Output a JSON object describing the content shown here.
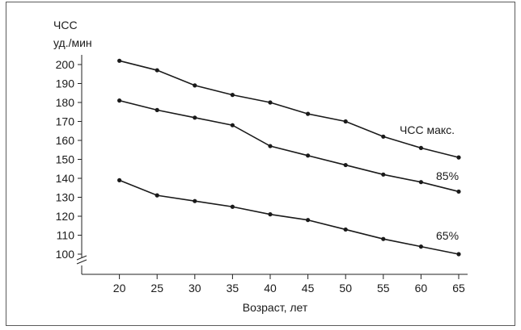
{
  "chart_data": {
    "type": "line",
    "ylabel_lines": [
      "ЧСС",
      "уд./мин"
    ],
    "xlabel": "Возраст, лет",
    "x": [
      20,
      25,
      30,
      35,
      40,
      45,
      50,
      55,
      60,
      65
    ],
    "yticks": [
      100,
      110,
      120,
      130,
      140,
      150,
      160,
      170,
      180,
      190,
      200
    ],
    "ylim": [
      95,
      205
    ],
    "xlim": [
      15,
      65
    ],
    "axis_break": true,
    "grid": false,
    "series": [
      {
        "name": "ЧСС макс.",
        "values": [
          202,
          197,
          189,
          184,
          180,
          174,
          170,
          162,
          156,
          151
        ]
      },
      {
        "name": "85%",
        "values": [
          181,
          176,
          172,
          168,
          157,
          152,
          147,
          142,
          138,
          133
        ]
      },
      {
        "name": "65%",
        "values": [
          139,
          131,
          128,
          125,
          121,
          118,
          113,
          108,
          104,
          100
        ]
      }
    ]
  }
}
